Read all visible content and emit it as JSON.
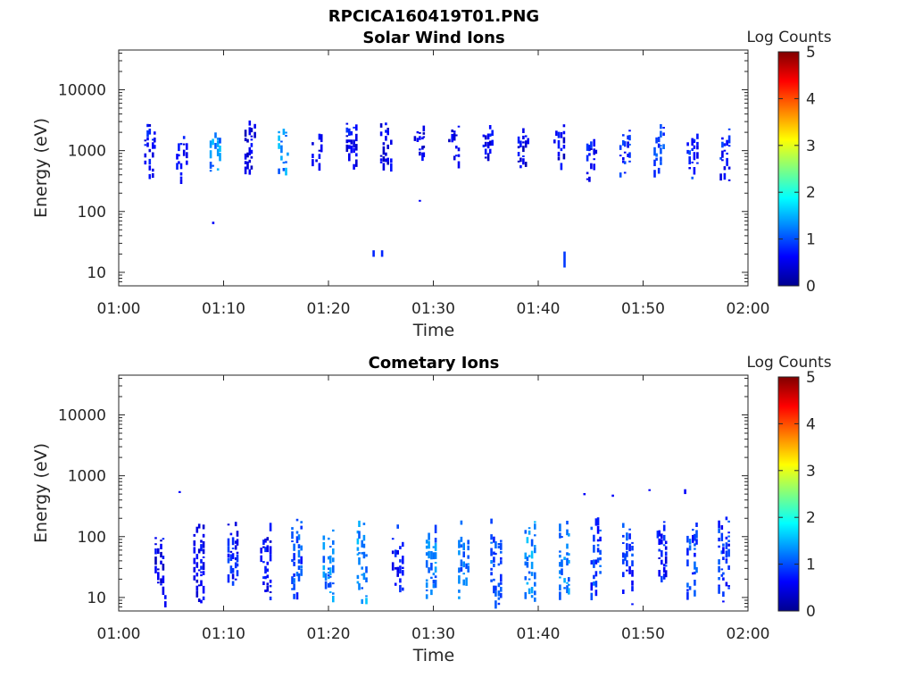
{
  "figure": {
    "title": "RPCICA160419T01.PNG"
  },
  "colorbar": {
    "label": "Log Counts",
    "range": [
      0,
      5
    ],
    "ticks": [
      "0",
      "1",
      "2",
      "3",
      "4",
      "5"
    ],
    "colormap": "jet",
    "colors": [
      "#00008f",
      "#0000ff",
      "#0080ff",
      "#00ffff",
      "#80ff80",
      "#ffff00",
      "#ff8000",
      "#ff0000",
      "#800000"
    ]
  },
  "chart_data": [
    {
      "type": "heatmap",
      "title": "Solar Wind Ions",
      "xlabel": "Time",
      "ylabel": "Energy (eV)",
      "xticks": [
        "01:00",
        "01:10",
        "01:20",
        "01:30",
        "01:40",
        "01:50",
        "02:00"
      ],
      "xlim_minutes": [
        0,
        60
      ],
      "yscale": "log",
      "ylim": [
        6,
        45000
      ],
      "yticks": [
        10,
        100,
        1000,
        10000
      ],
      "ytick_labels": [
        "10",
        "100",
        "1000",
        "10000"
      ],
      "grid": false,
      "bursts": [
        {
          "t": 2.8,
          "e_lo": 300,
          "e_hi": 2800,
          "peak": 0.9
        },
        {
          "t": 5.8,
          "e_lo": 280,
          "e_hi": 2600,
          "peak": 0.8
        },
        {
          "t": 9.0,
          "e_lo": 380,
          "e_hi": 2600,
          "peak": 1.6
        },
        {
          "t": 12.3,
          "e_lo": 400,
          "e_hi": 3500,
          "peak": 0.8
        },
        {
          "t": 15.5,
          "e_lo": 330,
          "e_hi": 2700,
          "peak": 1.6
        },
        {
          "t": 18.7,
          "e_lo": 350,
          "e_hi": 2900,
          "peak": 0.8
        },
        {
          "t": 22.0,
          "e_lo": 360,
          "e_hi": 3000,
          "peak": 0.9
        },
        {
          "t": 25.3,
          "e_lo": 300,
          "e_hi": 3000,
          "peak": 0.8
        },
        {
          "t": 28.5,
          "e_lo": 500,
          "e_hi": 2700,
          "peak": 0.8
        },
        {
          "t": 31.8,
          "e_lo": 500,
          "e_hi": 2700,
          "peak": 0.8
        },
        {
          "t": 35.0,
          "e_lo": 600,
          "e_hi": 2700,
          "peak": 0.9
        },
        {
          "t": 38.4,
          "e_lo": 400,
          "e_hi": 2700,
          "peak": 0.8
        },
        {
          "t": 41.8,
          "e_lo": 400,
          "e_hi": 2800,
          "peak": 0.8
        },
        {
          "t": 44.9,
          "e_lo": 300,
          "e_hi": 2700,
          "peak": 0.9
        },
        {
          "t": 48.1,
          "e_lo": 300,
          "e_hi": 2700,
          "peak": 1.1
        },
        {
          "t": 51.3,
          "e_lo": 300,
          "e_hi": 2800,
          "peak": 1.2
        },
        {
          "t": 54.5,
          "e_lo": 300,
          "e_hi": 2800,
          "peak": 1.1
        },
        {
          "t": 57.6,
          "e_lo": 300,
          "e_hi": 2700,
          "peak": 1.0
        }
      ],
      "isolated": [
        {
          "t": 24.2,
          "e_lo": 18,
          "e_hi": 23,
          "v": 0.8
        },
        {
          "t": 25.0,
          "e_lo": 18,
          "e_hi": 23,
          "v": 0.8
        },
        {
          "t": 42.4,
          "e_lo": 12,
          "e_hi": 22,
          "v": 0.9
        },
        {
          "t": 8.9,
          "e_lo": 62,
          "e_hi": 68,
          "v": 0.6
        },
        {
          "t": 28.6,
          "e_lo": 145,
          "e_hi": 155,
          "v": 0.6
        }
      ]
    },
    {
      "type": "heatmap",
      "title": "Cometary Ions",
      "xlabel": "Time",
      "ylabel": "Energy (eV)",
      "xticks": [
        "01:00",
        "01:10",
        "01:20",
        "01:30",
        "01:40",
        "01:50",
        "02:00"
      ],
      "xlim_minutes": [
        0,
        60
      ],
      "yscale": "log",
      "ylim": [
        6,
        45000
      ],
      "yticks": [
        10,
        100,
        1000,
        10000
      ],
      "ytick_labels": [
        "10",
        "100",
        "1000",
        "10000"
      ],
      "grid": false,
      "bursts": [
        {
          "t": 3.8,
          "e_lo": 6,
          "e_hi": 200,
          "peak": 0.8
        },
        {
          "t": 7.5,
          "e_lo": 8,
          "e_hi": 200,
          "peak": 0.9
        },
        {
          "t": 10.7,
          "e_lo": 8,
          "e_hi": 230,
          "peak": 1.0
        },
        {
          "t": 13.8,
          "e_lo": 9,
          "e_hi": 200,
          "peak": 0.9
        },
        {
          "t": 16.8,
          "e_lo": 8,
          "e_hi": 200,
          "peak": 1.3
        },
        {
          "t": 19.8,
          "e_lo": 7,
          "e_hi": 200,
          "peak": 1.5
        },
        {
          "t": 23.0,
          "e_lo": 7,
          "e_hi": 200,
          "peak": 1.6
        },
        {
          "t": 26.4,
          "e_lo": 8,
          "e_hi": 160,
          "peak": 1.0
        },
        {
          "t": 29.6,
          "e_lo": 7,
          "e_hi": 200,
          "peak": 1.5
        },
        {
          "t": 32.7,
          "e_lo": 6,
          "e_hi": 200,
          "peak": 1.4
        },
        {
          "t": 35.8,
          "e_lo": 6,
          "e_hi": 200,
          "peak": 1.3
        },
        {
          "t": 39.0,
          "e_lo": 6,
          "e_hi": 200,
          "peak": 1.6
        },
        {
          "t": 42.3,
          "e_lo": 8,
          "e_hi": 200,
          "peak": 1.5
        },
        {
          "t": 45.3,
          "e_lo": 8,
          "e_hi": 300,
          "peak": 1.2
        },
        {
          "t": 48.3,
          "e_lo": 7,
          "e_hi": 230,
          "peak": 1.1
        },
        {
          "t": 51.6,
          "e_lo": 8,
          "e_hi": 230,
          "peak": 1.0
        },
        {
          "t": 54.5,
          "e_lo": 8,
          "e_hi": 230,
          "peak": 1.2
        },
        {
          "t": 57.5,
          "e_lo": 8,
          "e_hi": 230,
          "peak": 1.1
        }
      ],
      "isolated": [
        {
          "t": 5.7,
          "e_lo": 520,
          "e_hi": 560,
          "v": 0.6
        },
        {
          "t": 44.3,
          "e_lo": 480,
          "e_hi": 520,
          "v": 0.6
        },
        {
          "t": 47.0,
          "e_lo": 450,
          "e_hi": 490,
          "v": 0.6
        },
        {
          "t": 50.5,
          "e_lo": 560,
          "e_hi": 600,
          "v": 0.6
        },
        {
          "t": 53.9,
          "e_lo": 500,
          "e_hi": 600,
          "v": 0.6
        }
      ]
    }
  ]
}
